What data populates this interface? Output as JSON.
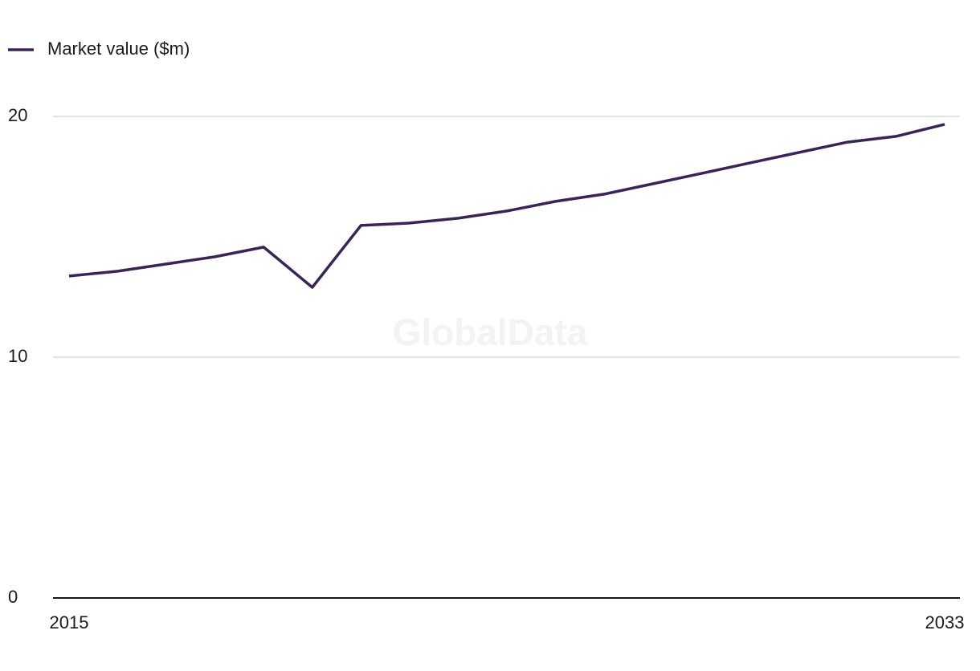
{
  "chart_data": {
    "type": "line",
    "watermark": "GlobalData",
    "categories": [
      "2015",
      null,
      null,
      null,
      null,
      null,
      null,
      null,
      null,
      null,
      null,
      null,
      null,
      null,
      null,
      null,
      null,
      null,
      "2033"
    ],
    "series": [
      {
        "name": "Market value ($m)",
        "color": "#3a2456",
        "values": [
          13.37,
          13.57,
          13.87,
          14.17,
          14.57,
          12.9,
          15.47,
          15.57,
          15.77,
          16.07,
          16.47,
          16.77,
          17.2,
          17.63,
          18.07,
          18.5,
          18.93,
          19.17,
          19.67
        ]
      }
    ],
    "ylim": [
      0,
      20
    ],
    "yticks": [
      0,
      10,
      20
    ],
    "grid": true,
    "legend": "top-left"
  }
}
